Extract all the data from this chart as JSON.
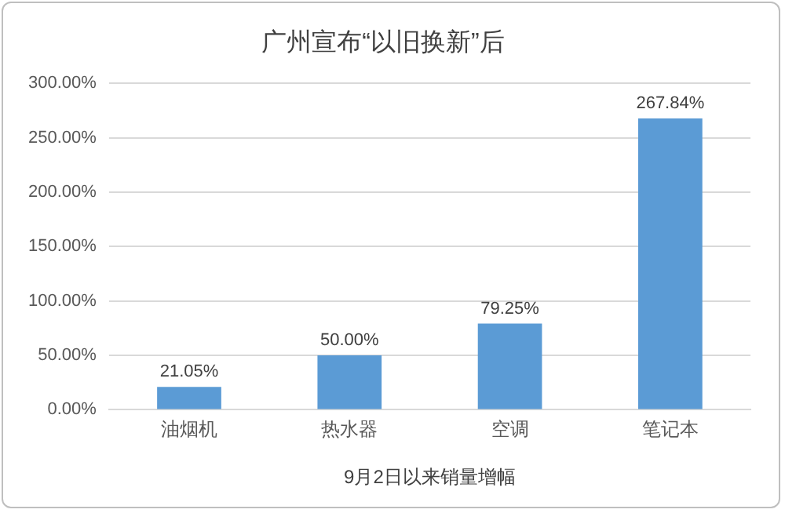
{
  "chart_data": {
    "type": "bar",
    "title": "广州宣布“以旧换新”后",
    "xlabel": "9月2日以来销量增幅",
    "categories": [
      "油烟机",
      "热水器",
      "空调",
      "笔记本"
    ],
    "values": [
      21.05,
      50.0,
      79.25,
      267.84
    ],
    "value_labels": [
      "21.05%",
      "50.00%",
      "79.25%",
      "267.84%"
    ],
    "color": "#5b9bd5",
    "ylim": [
      0,
      300
    ],
    "yticks": [
      {
        "value": 0,
        "label": "0.00%"
      },
      {
        "value": 50,
        "label": "50.00%"
      },
      {
        "value": 100,
        "label": "100.00%"
      },
      {
        "value": 150,
        "label": "150.00%"
      },
      {
        "value": 200,
        "label": "200.00%"
      },
      {
        "value": 250,
        "label": "250.00%"
      },
      {
        "value": 300,
        "label": "300.00%"
      }
    ],
    "grid": "y"
  }
}
